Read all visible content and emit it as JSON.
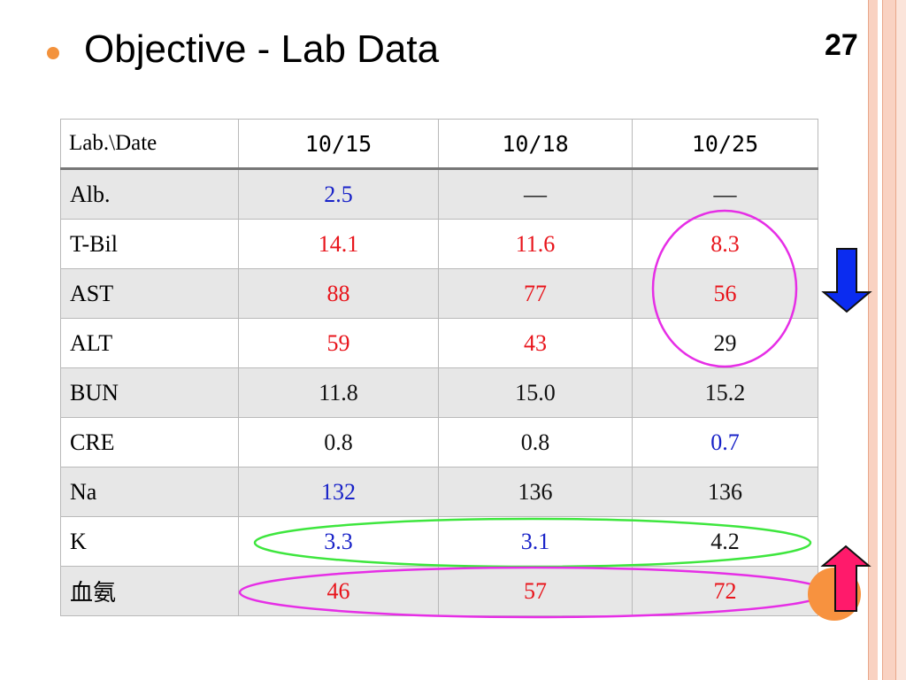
{
  "slide": {
    "title": "Objective - Lab Data",
    "page_number": "27"
  },
  "table": {
    "corner_header": "Lab.\\Date",
    "dates": [
      "10/15",
      "10/18",
      "10/25"
    ],
    "rows": [
      {
        "label": "Alb.",
        "values": [
          "2.5",
          "—",
          "—"
        ],
        "colors": [
          "#1822c8",
          "#111111",
          "#111111"
        ]
      },
      {
        "label": "T-Bil",
        "values": [
          "14.1",
          "11.6",
          "8.3"
        ],
        "colors": [
          "#e8141b",
          "#e8141b",
          "#e8141b"
        ]
      },
      {
        "label": "AST",
        "values": [
          "88",
          "77",
          "56"
        ],
        "colors": [
          "#e8141b",
          "#e8141b",
          "#e8141b"
        ]
      },
      {
        "label": "ALT",
        "values": [
          "59",
          "43",
          "29"
        ],
        "colors": [
          "#e8141b",
          "#e8141b",
          "#111111"
        ]
      },
      {
        "label": "BUN",
        "values": [
          "11.8",
          "15.0",
          "15.2"
        ],
        "colors": [
          "#111111",
          "#111111",
          "#111111"
        ]
      },
      {
        "label": "CRE",
        "values": [
          "0.8",
          "0.8",
          "0.7"
        ],
        "colors": [
          "#111111",
          "#111111",
          "#1822c8"
        ]
      },
      {
        "label": "Na",
        "values": [
          "132",
          "136",
          "136"
        ],
        "colors": [
          "#1822c8",
          "#111111",
          "#111111"
        ]
      },
      {
        "label": "K",
        "values": [
          "3.3",
          "3.1",
          "4.2"
        ],
        "colors": [
          "#1822c8",
          "#1822c8",
          "#111111"
        ]
      },
      {
        "label": "血氨",
        "values": [
          "46",
          "57",
          "72"
        ],
        "colors": [
          "#e8141b",
          "#e8141b",
          "#e8141b"
        ]
      }
    ]
  },
  "annotations": {
    "down_arrow": {
      "icon": "down-arrow-icon",
      "color": "#0b2cf0"
    },
    "up_arrow": {
      "icon": "up-arrow-icon",
      "color": "#ff1a6b"
    },
    "circle_color": "#e62ee6",
    "k_ellipse_color": "#3ee63e",
    "orange_dot_color": "#f7923f"
  }
}
